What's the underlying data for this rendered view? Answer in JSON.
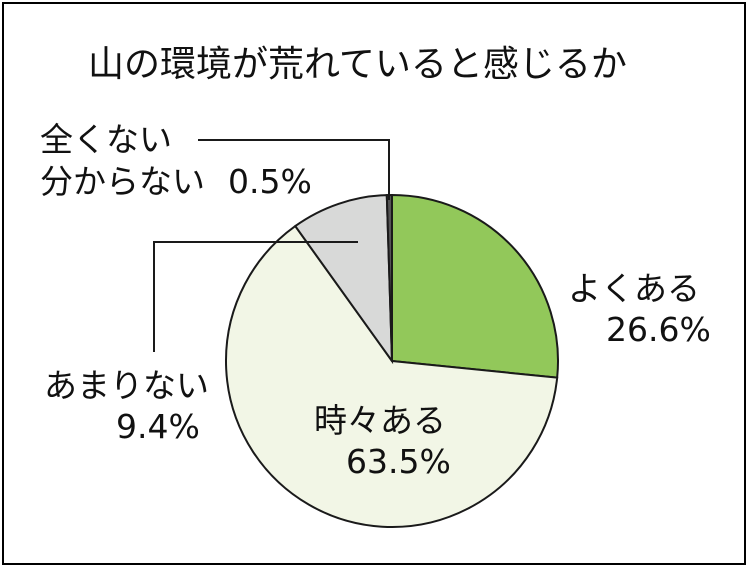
{
  "chart_data": {
    "type": "pie",
    "title": "山の環境が荒れていると感じるか",
    "unit": "%",
    "categories": [
      "よくある",
      "時々ある",
      "あまりない",
      "全くない 分からない"
    ],
    "values": [
      26.6,
      63.5,
      9.4,
      0.5
    ],
    "labels": [
      {
        "lines": [
          "よくある"
        ],
        "value_text": "26.6%"
      },
      {
        "lines": [
          "時々ある"
        ],
        "value_text": "63.5%"
      },
      {
        "lines": [
          "あまりない"
        ],
        "value_text": "9.4%"
      },
      {
        "lines": [
          "全くない",
          "分からない"
        ],
        "value_text": "0.5%"
      }
    ],
    "colors": [
      "#92c85a",
      "#f2f6e6",
      "#d8d9d8",
      "#555555"
    ],
    "start": "12 o'clock",
    "direction": "clockwise"
  }
}
